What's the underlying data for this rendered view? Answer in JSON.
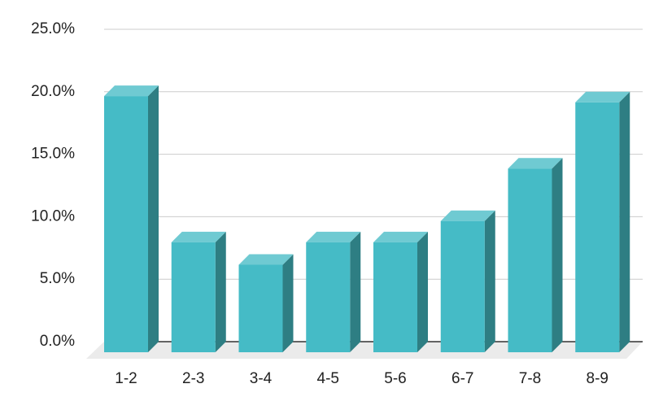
{
  "chart_data": {
    "type": "bar3d",
    "categories": [
      "1-2",
      "2-3",
      "3-4",
      "4-5",
      "5-6",
      "6-7",
      "7-8",
      "8-9"
    ],
    "values": [
      20.5,
      8.8,
      7.0,
      8.8,
      8.8,
      10.5,
      14.7,
      20.0
    ],
    "color": "#45bbc6",
    "ylim": [
      0,
      25
    ],
    "yticks": [
      {
        "value": 0,
        "label": "0.0%"
      },
      {
        "value": 5,
        "label": "5.0%"
      },
      {
        "value": 10,
        "label": "10.0%"
      },
      {
        "value": 15,
        "label": "15.0%"
      },
      {
        "value": 20,
        "label": "20.0%"
      },
      {
        "value": 25,
        "label": "25.0%"
      }
    ],
    "grid": true
  }
}
